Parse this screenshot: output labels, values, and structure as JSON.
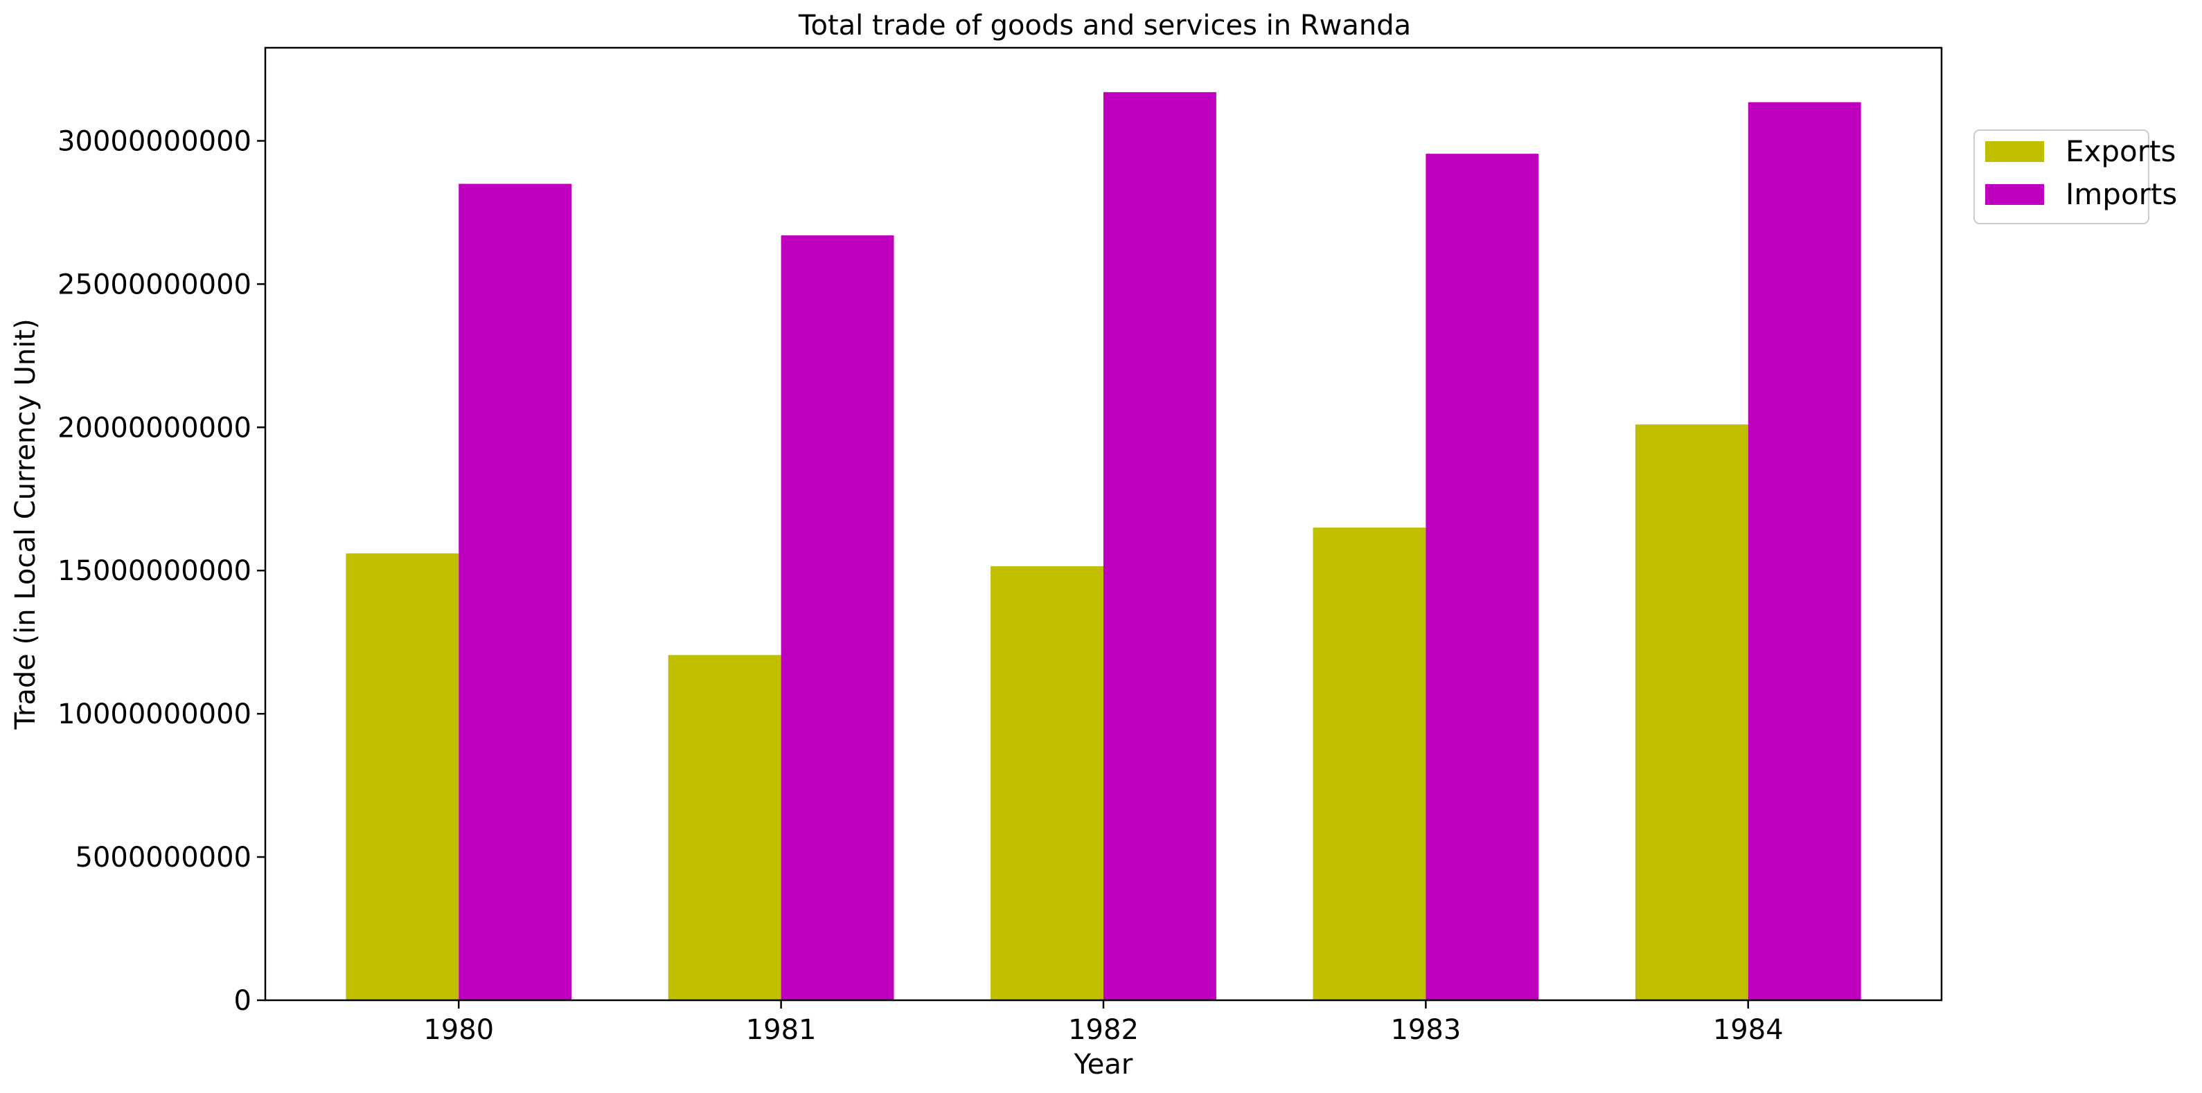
{
  "chart_data": {
    "type": "bar",
    "title": "Total trade of goods and services in Rwanda",
    "xlabel": "Year",
    "ylabel": "Trade (in Local Currency Unit)",
    "categories": [
      "1980",
      "1981",
      "1982",
      "1983",
      "1984"
    ],
    "series": [
      {
        "name": "Exports",
        "color": "#bfbf00",
        "values": [
          15600000000,
          12050000000,
          15150000000,
          16500000000,
          20100000000
        ]
      },
      {
        "name": "Imports",
        "color": "#bf00bf",
        "values": [
          28500000000,
          26700000000,
          31700000000,
          29550000000,
          31350000000
        ]
      }
    ],
    "ylim": [
      0,
      33250000000
    ],
    "yticks": [
      0,
      5000000000,
      10000000000,
      15000000000,
      20000000000,
      25000000000,
      30000000000
    ],
    "ytick_labels": [
      "0",
      "5000000000",
      "10000000000",
      "15000000000",
      "20000000000",
      "25000000000",
      "30000000000"
    ],
    "grid": false,
    "legend_position": "top-right (outside plot)"
  }
}
